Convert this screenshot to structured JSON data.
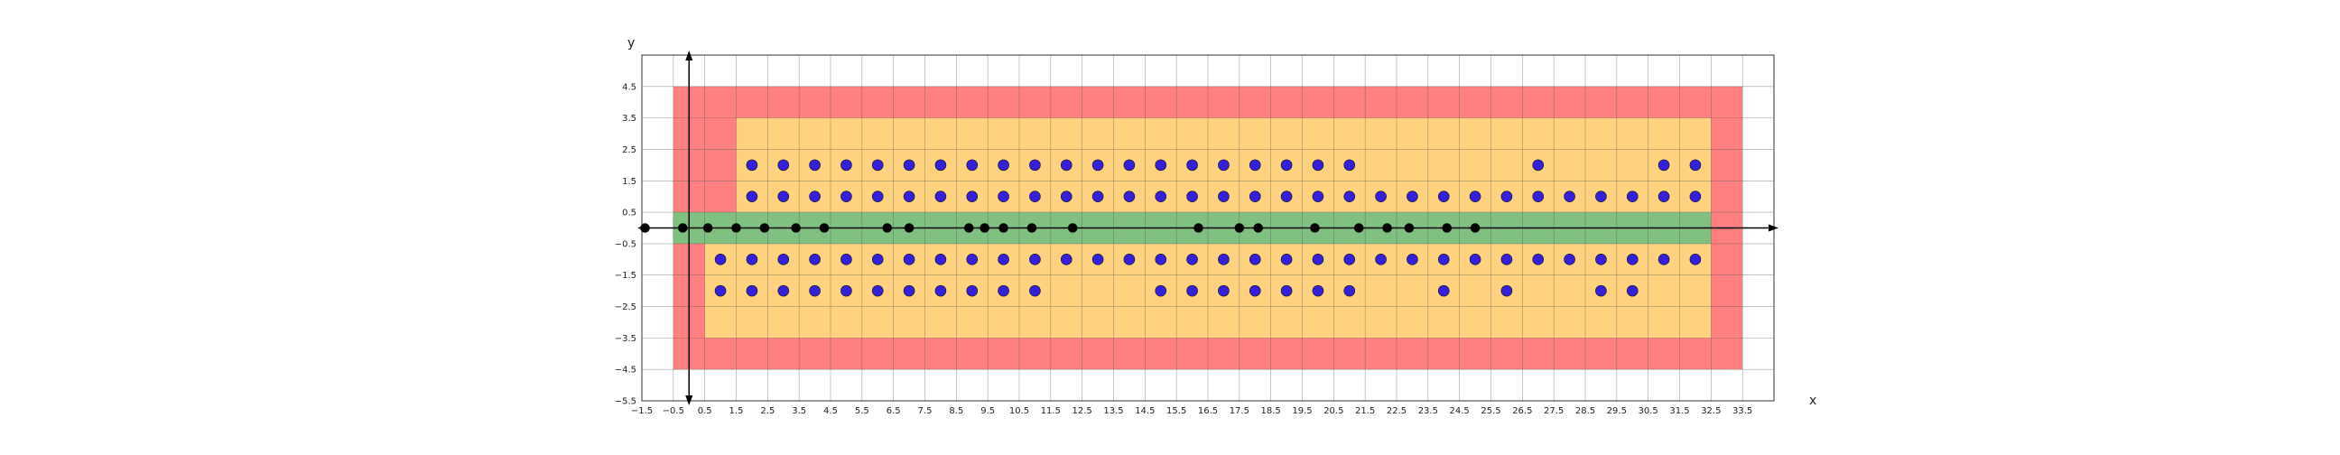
{
  "chart_data": {
    "type": "scatter",
    "title": "",
    "xlabel": "x",
    "ylabel": "y",
    "xlim": [
      -1.5,
      34.5
    ],
    "ylim": [
      -5.5,
      5.5
    ],
    "grid": true,
    "xticks": [
      "-1.5",
      "-0.5",
      "0.5",
      "1.5",
      "2.5",
      "3.5",
      "4.5",
      "5.5",
      "6.5",
      "7.5",
      "8.5",
      "9.5",
      "10.5",
      "11.5",
      "12.5",
      "13.5",
      "14.5",
      "15.5",
      "16.5",
      "17.5",
      "18.5",
      "19.5",
      "20.5",
      "21.5",
      "22.5",
      "23.5",
      "24.5",
      "25.5",
      "26.5",
      "27.5",
      "28.5",
      "29.5",
      "30.5",
      "31.5",
      "32.5",
      "33.5"
    ],
    "yticks": [
      "4.5",
      "3.5",
      "2.5",
      "1.5",
      "0.5",
      "-0.5",
      "-1.5",
      "-2.5",
      "-3.5",
      "-4.5",
      "-5.5"
    ],
    "regions": [
      {
        "color": "#ff8080",
        "rect": [
          -0.5,
          33.5,
          -4.5,
          4.5
        ]
      },
      {
        "color": "#ffd280",
        "rect": [
          0.5,
          32.5,
          -3.5,
          0
        ]
      },
      {
        "color": "#ffd280",
        "rect": [
          1.5,
          32.5,
          0,
          3.5
        ]
      },
      {
        "color": "#80c080",
        "rect": [
          -0.5,
          32.5,
          -0.5,
          0.5
        ]
      }
    ],
    "series": [
      {
        "color": "#3320d8",
        "points": [
          [
            2,
            2
          ],
          [
            3,
            2
          ],
          [
            4,
            2
          ],
          [
            5,
            2
          ],
          [
            6,
            2
          ],
          [
            7,
            2
          ],
          [
            8,
            2
          ],
          [
            9,
            2
          ],
          [
            10,
            2
          ],
          [
            11,
            2
          ],
          [
            12,
            2
          ],
          [
            13,
            2
          ],
          [
            14,
            2
          ],
          [
            15,
            2
          ],
          [
            16,
            2
          ],
          [
            17,
            2
          ],
          [
            18,
            2
          ],
          [
            19,
            2
          ],
          [
            20,
            2
          ],
          [
            21,
            2
          ],
          [
            27,
            2
          ],
          [
            31,
            2
          ],
          [
            32,
            2
          ],
          [
            2,
            1
          ],
          [
            3,
            1
          ],
          [
            4,
            1
          ],
          [
            5,
            1
          ],
          [
            6,
            1
          ],
          [
            7,
            1
          ],
          [
            8,
            1
          ],
          [
            9,
            1
          ],
          [
            10,
            1
          ],
          [
            11,
            1
          ],
          [
            12,
            1
          ],
          [
            13,
            1
          ],
          [
            14,
            1
          ],
          [
            15,
            1
          ],
          [
            16,
            1
          ],
          [
            17,
            1
          ],
          [
            18,
            1
          ],
          [
            19,
            1
          ],
          [
            20,
            1
          ],
          [
            21,
            1
          ],
          [
            22,
            1
          ],
          [
            23,
            1
          ],
          [
            24,
            1
          ],
          [
            25,
            1
          ],
          [
            26,
            1
          ],
          [
            27,
            1
          ],
          [
            28,
            1
          ],
          [
            29,
            1
          ],
          [
            30,
            1
          ],
          [
            31,
            1
          ],
          [
            32,
            1
          ],
          [
            1,
            -1
          ],
          [
            2,
            -1
          ],
          [
            3,
            -1
          ],
          [
            4,
            -1
          ],
          [
            5,
            -1
          ],
          [
            6,
            -1
          ],
          [
            7,
            -1
          ],
          [
            8,
            -1
          ],
          [
            9,
            -1
          ],
          [
            10,
            -1
          ],
          [
            11,
            -1
          ],
          [
            12,
            -1
          ],
          [
            13,
            -1
          ],
          [
            14,
            -1
          ],
          [
            15,
            -1
          ],
          [
            16,
            -1
          ],
          [
            17,
            -1
          ],
          [
            18,
            -1
          ],
          [
            19,
            -1
          ],
          [
            20,
            -1
          ],
          [
            21,
            -1
          ],
          [
            22,
            -1
          ],
          [
            23,
            -1
          ],
          [
            24,
            -1
          ],
          [
            25,
            -1
          ],
          [
            26,
            -1
          ],
          [
            27,
            -1
          ],
          [
            28,
            -1
          ],
          [
            29,
            -1
          ],
          [
            30,
            -1
          ],
          [
            31,
            -1
          ],
          [
            32,
            -1
          ],
          [
            1,
            -2
          ],
          [
            2,
            -2
          ],
          [
            3,
            -2
          ],
          [
            4,
            -2
          ],
          [
            5,
            -2
          ],
          [
            6,
            -2
          ],
          [
            7,
            -2
          ],
          [
            8,
            -2
          ],
          [
            9,
            -2
          ],
          [
            10,
            -2
          ],
          [
            11,
            -2
          ],
          [
            15,
            -2
          ],
          [
            16,
            -2
          ],
          [
            17,
            -2
          ],
          [
            18,
            -2
          ],
          [
            19,
            -2
          ],
          [
            20,
            -2
          ],
          [
            21,
            -2
          ],
          [
            24,
            -2
          ],
          [
            26,
            -2
          ],
          [
            29,
            -2
          ],
          [
            30,
            -2
          ]
        ]
      },
      {
        "color": "#000000",
        "points": [
          [
            -1.4,
            0
          ],
          [
            -0.2,
            0
          ],
          [
            0.6,
            0
          ],
          [
            1.5,
            0
          ],
          [
            2.4,
            0
          ],
          [
            3.4,
            0
          ],
          [
            4.3,
            0
          ],
          [
            6.3,
            0
          ],
          [
            7.0,
            0
          ],
          [
            8.9,
            0
          ],
          [
            9.4,
            0
          ],
          [
            10.0,
            0
          ],
          [
            10.9,
            0
          ],
          [
            12.2,
            0
          ],
          [
            16.2,
            0
          ],
          [
            17.5,
            0
          ],
          [
            18.1,
            0
          ],
          [
            19.9,
            0
          ],
          [
            21.3,
            0
          ],
          [
            22.2,
            0
          ],
          [
            22.9,
            0
          ],
          [
            24.1,
            0
          ],
          [
            25.0,
            0
          ]
        ]
      }
    ]
  }
}
